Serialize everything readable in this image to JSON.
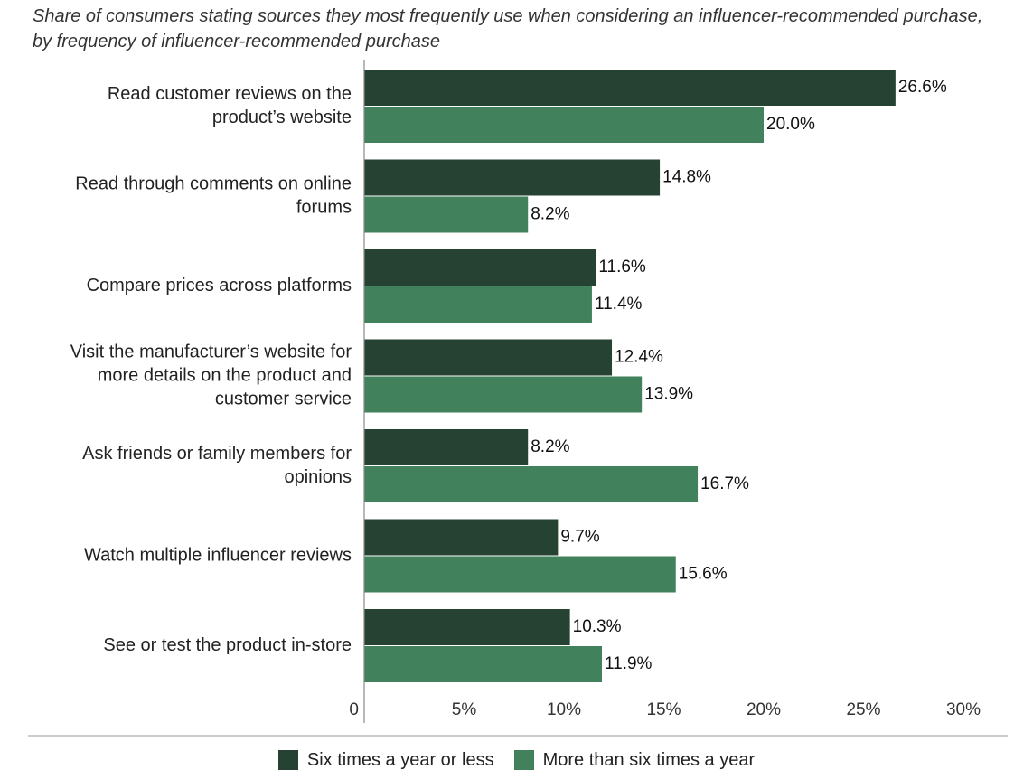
{
  "title": "Share of consumers stating sources they most frequently use when considering an influencer-recommended purchase, by frequency of influencer-recommended purchase",
  "colors": {
    "series1": "#254232",
    "series2": "#41825C",
    "axis": "#888888"
  },
  "chart_data": {
    "type": "bar",
    "orientation": "horizontal",
    "categories": [
      [
        "Read customer reviews on the",
        "product’s website"
      ],
      [
        "Read through comments on online",
        "forums"
      ],
      [
        "Compare prices across platforms"
      ],
      [
        "Visit the manufacturer’s website for",
        "more details on the product and",
        "customer service"
      ],
      [
        "Ask friends or family members for",
        "opinions"
      ],
      [
        "Watch multiple influencer reviews"
      ],
      [
        "See or test the product in-store"
      ]
    ],
    "series": [
      {
        "name": "Six times a year or less",
        "values": [
          26.6,
          14.8,
          11.6,
          12.4,
          8.2,
          9.7,
          10.3
        ],
        "labels": [
          "26.6%",
          "14.8%",
          "11.6%",
          "12.4%",
          "8.2%",
          "9.7%",
          "10.3%"
        ]
      },
      {
        "name": "More than six times a year",
        "values": [
          20.0,
          8.2,
          11.4,
          13.9,
          16.7,
          15.6,
          11.9
        ],
        "labels": [
          "20.0%",
          "8.2%",
          "11.4%",
          "13.9%",
          "16.7%",
          "15.6%",
          "11.9%"
        ]
      }
    ],
    "xlim": [
      0,
      30
    ],
    "xticks": [
      0,
      5,
      10,
      15,
      20,
      25,
      30
    ],
    "xtick_labels": [
      "0",
      "5%",
      "10%",
      "15%",
      "20%",
      "25%",
      "30%"
    ],
    "grid": false,
    "legend": "bottom-center"
  }
}
